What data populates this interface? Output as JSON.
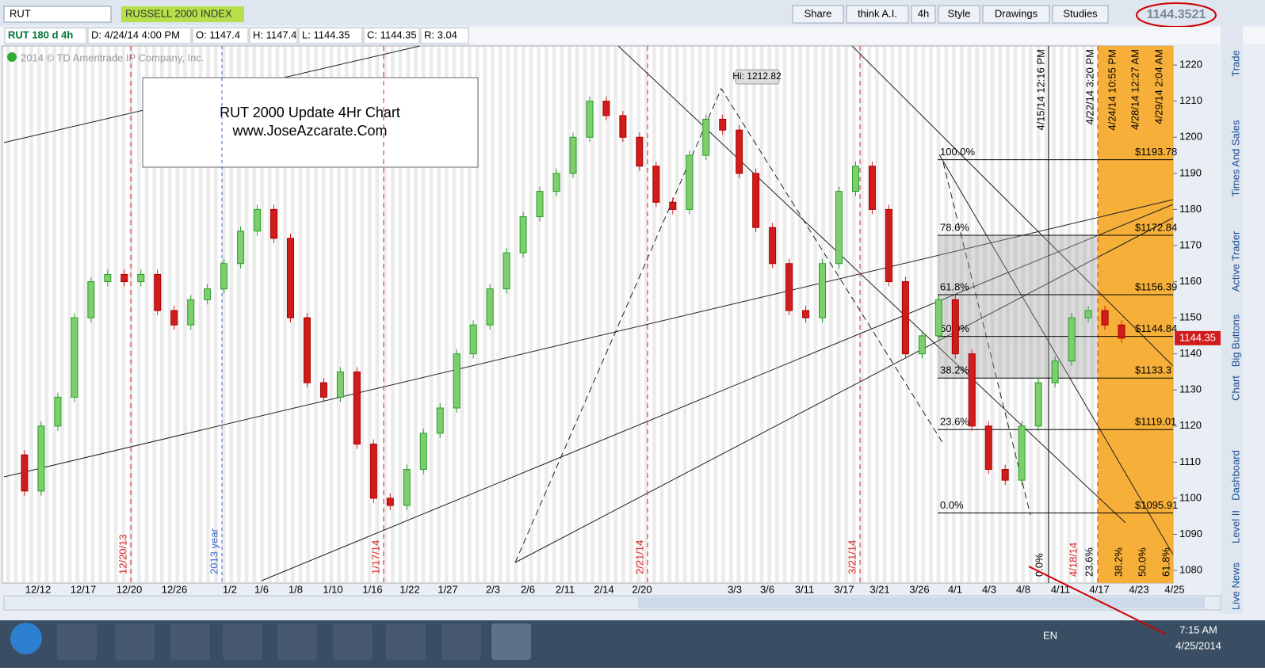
{
  "toolbar": {
    "symbol": "RUT",
    "description": "RUSSELL 2000 INDEX",
    "buttons": [
      "Share",
      "think A.I.",
      "4h",
      "Style",
      "Drawings",
      "Studies"
    ],
    "quote": "1144.3521"
  },
  "info_bar": [
    "RUT 180 d 4h",
    "D: 4/24/14 4:00 PM",
    "O: 1147.4",
    "H: 1147.4",
    "L: 1144.35",
    "C: 1144.35",
    "R: 3.04"
  ],
  "copyright": "2014 © TD Ameritrade IP Company, Inc.",
  "note": {
    "line1": "RUT 2000 Update 4Hr Chart",
    "line2": "www.JoseAzcarate.Com"
  },
  "chart_data": {
    "type": "candlestick",
    "series": [
      {
        "name": "RUT",
        "values": [
          1112,
          1102,
          1120,
          1128,
          1150,
          1160,
          1162,
          1160,
          1162,
          1152,
          1148,
          1155,
          1158,
          1165,
          1174,
          1180,
          1172,
          1150,
          1132,
          1128,
          1135,
          1115,
          1100,
          1098,
          1108,
          1118,
          1125,
          1140,
          1148,
          1158,
          1168,
          1178,
          1185,
          1190,
          1200,
          1210,
          1206,
          1200,
          1192,
          1182,
          1180,
          1195,
          1205,
          1202,
          1190,
          1175,
          1165,
          1152,
          1150,
          1165,
          1185,
          1192,
          1180,
          1160,
          1140,
          1145,
          1155,
          1140,
          1120,
          1108,
          1105,
          1120,
          1132,
          1138,
          1150,
          1152,
          1148,
          1144.35
        ]
      }
    ],
    "ylim": [
      1076.5,
      1225.3
    ],
    "yticks": [
      1080,
      1090,
      1100,
      1110,
      1120,
      1130,
      1140,
      1150,
      1160,
      1170,
      1180,
      1190,
      1200,
      1210,
      1220
    ],
    "x_labels": [
      "12/12",
      "12/17",
      "12/20",
      "12/26",
      "1/2",
      "1/6",
      "1/8",
      "1/10",
      "1/16",
      "1/22",
      "1/27",
      "2/3",
      "2/6",
      "2/11",
      "2/14",
      "2/20",
      "3/3",
      "3/6",
      "3/11",
      "3/17",
      "3/21",
      "3/26",
      "4/1",
      "4/3",
      "4/8",
      "4/11",
      "4/17",
      "4/23",
      "4/25"
    ],
    "last_price": {
      "value": 1144.35,
      "label": "1144.35"
    },
    "high_label": "Hi: 1212.82",
    "markers": [
      "12/20/13",
      "2013 year",
      "1/17/14",
      "2/21/14",
      "3/21/14",
      "4/15/14 12:16 PM",
      "4/22/14 3:20 PM",
      "4/24/14 10:55 PM",
      "4/28/14 12:27 AM",
      "4/29/14 2:04 AM"
    ],
    "bottom_labels": [
      "0.0%",
      "4/18/14",
      "23.6%",
      "38.2%",
      "50.0%",
      "61.8%"
    ],
    "fib_levels": [
      {
        "pct": "100.0%",
        "value": 1193.78,
        "label": "$1193.78"
      },
      {
        "pct": "78.6%",
        "value": 1172.84,
        "label": "$1172.84"
      },
      {
        "pct": "61.8%",
        "value": 1156.39,
        "label": "$1156.39"
      },
      {
        "pct": "50.0%",
        "value": 1144.84,
        "label": "$1144.84"
      },
      {
        "pct": "38.2%",
        "value": 1133.3,
        "label": "$1133.3"
      },
      {
        "pct": "23.6%",
        "value": 1119.01,
        "label": "$1119.01"
      },
      {
        "pct": "0.0%",
        "value": 1095.91,
        "label": "$1095.91"
      }
    ]
  },
  "side_tabs": [
    "Trade",
    "Times And Sales",
    "Active Trader",
    "Big Buttons",
    "Chart",
    "Dashboard",
    "Level II",
    "Live News"
  ],
  "taskbar": {
    "language": "EN",
    "time": "7:15 AM",
    "date": "4/25/2014"
  }
}
